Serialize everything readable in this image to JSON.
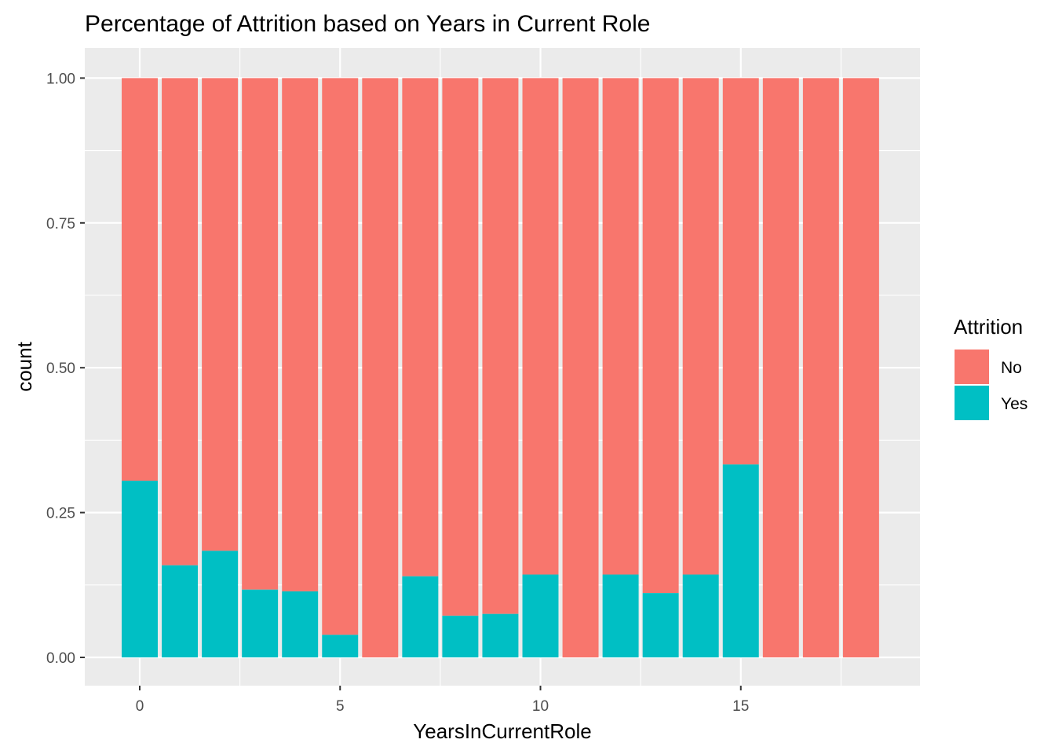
{
  "chart_data": {
    "type": "bar",
    "stacked": true,
    "position": "fill",
    "title": "Percentage of Attrition based on Years in Current Role",
    "xlabel": "YearsInCurrentRole",
    "ylabel": "count",
    "x": [
      0,
      1,
      2,
      3,
      4,
      5,
      6,
      7,
      8,
      9,
      10,
      11,
      12,
      13,
      14,
      15,
      16,
      17,
      18
    ],
    "xlim": [
      -0.5,
      18.5
    ],
    "ylim": [
      0,
      1
    ],
    "xticks": [
      0,
      5,
      10,
      15
    ],
    "xtick_labels": [
      "0",
      "5",
      "10",
      "15"
    ],
    "yticks": [
      0,
      0.25,
      0.5,
      0.75,
      1
    ],
    "ytick_labels": [
      "0.00",
      "0.25",
      "0.50",
      "0.75",
      "1.00"
    ],
    "series": [
      {
        "name": "Yes",
        "color": "#00BFC4",
        "values": [
          0.305,
          0.159,
          0.184,
          0.117,
          0.114,
          0.039,
          0.0,
          0.14,
          0.072,
          0.075,
          0.143,
          0.0,
          0.143,
          0.111,
          0.143,
          0.333,
          0.0,
          0.0,
          0.0
        ]
      },
      {
        "name": "No",
        "color": "#F8766D",
        "values": [
          0.695,
          0.841,
          0.816,
          0.883,
          0.886,
          0.961,
          1.0,
          0.86,
          0.928,
          0.925,
          0.857,
          1.0,
          0.857,
          0.889,
          0.857,
          0.667,
          1.0,
          1.0,
          1.0
        ]
      }
    ],
    "legend": {
      "title": "Attrition",
      "position": "right",
      "entries": [
        {
          "label": "No",
          "color": "#F8766D"
        },
        {
          "label": "Yes",
          "color": "#00BFC4"
        }
      ]
    },
    "grid": true,
    "panel_background": "#EBEBEB",
    "grid_color": "#FFFFFF"
  }
}
